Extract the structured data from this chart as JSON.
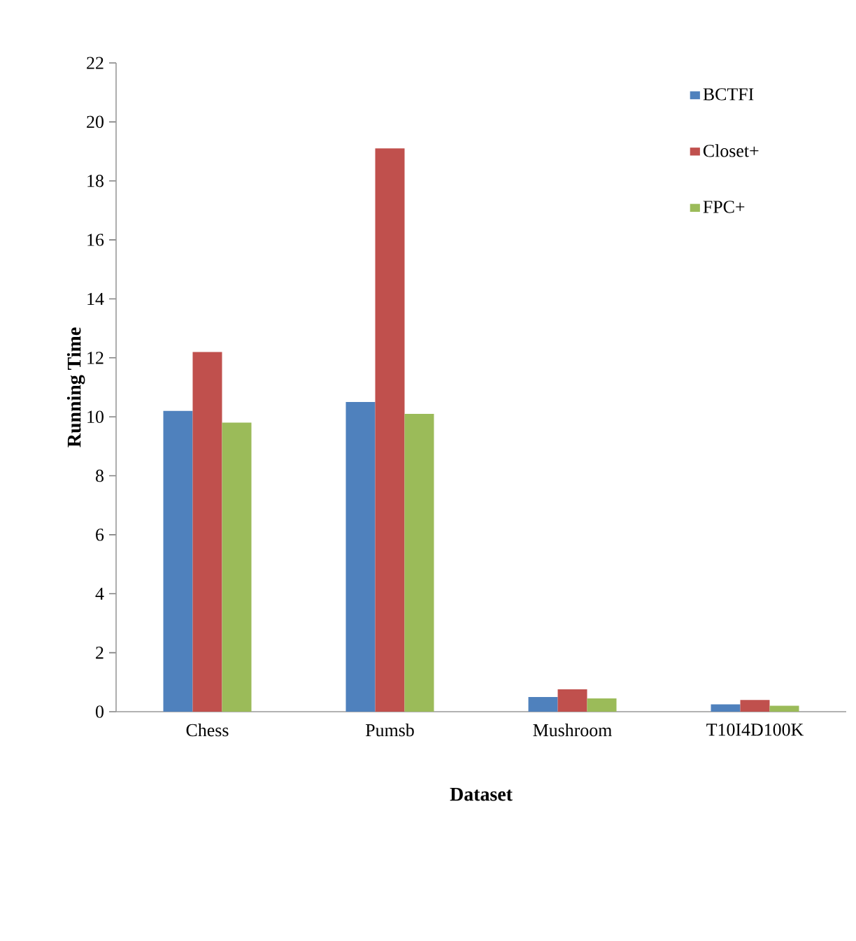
{
  "chart_data": {
    "type": "bar",
    "xlabel": "Dataset",
    "ylabel": "Running Time",
    "categories": [
      "Chess",
      "Pumsb",
      "Mushroom",
      "T10I4D100K"
    ],
    "series": [
      {
        "name": "BCTFI",
        "color": "#4f81bd",
        "values": [
          10.2,
          10.5,
          0.5,
          0.25
        ]
      },
      {
        "name": "Closet+",
        "color": "#c0504d",
        "values": [
          12.2,
          19.1,
          0.76,
          0.4
        ]
      },
      {
        "name": "FPC+",
        "color": "#9bbb59",
        "values": [
          9.8,
          10.1,
          0.45,
          0.2
        ]
      }
    ],
    "ylim": [
      0,
      22
    ],
    "yticks": [
      0,
      2,
      4,
      6,
      8,
      10,
      12,
      14,
      16,
      18,
      20,
      22
    ],
    "grid": false,
    "legend": "top right"
  }
}
